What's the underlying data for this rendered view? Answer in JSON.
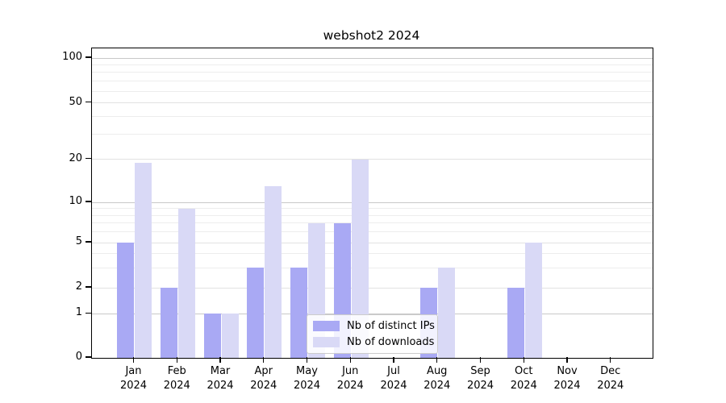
{
  "chart_data": {
    "type": "bar",
    "title": "webshot2 2024",
    "categories": [
      "Jan",
      "Feb",
      "Mar",
      "Apr",
      "May",
      "Jun",
      "Jul",
      "Aug",
      "Sep",
      "Oct",
      "Nov",
      "Dec"
    ],
    "category_year": "2024",
    "series": [
      {
        "name": "Nb of distinct IPs",
        "color": "#a9a9f4",
        "values": [
          5,
          2,
          1,
          3,
          3,
          7,
          0,
          2,
          0,
          2,
          0,
          0
        ]
      },
      {
        "name": "Nb of downloads",
        "color": "#d9d9f6",
        "values": [
          19,
          9,
          1,
          13,
          7,
          20,
          0,
          3,
          0,
          5,
          0,
          0
        ]
      }
    ],
    "xlabel": "",
    "ylabel": "",
    "yscale": "log-like with 0 baseline",
    "yticks": [
      0,
      1,
      2,
      5,
      10,
      20,
      50,
      100
    ],
    "minor_gridlines": [
      3,
      4,
      6,
      7,
      8,
      9,
      30,
      40,
      60,
      70,
      80,
      90
    ],
    "ylim": [
      0,
      115
    ],
    "grid": "on",
    "legend_position": "lower center"
  },
  "colors": {
    "grid_decade": "#c8c8c8",
    "grid_labeled": "#e2e2e2",
    "grid_minor": "#ededed",
    "spine": "#000000",
    "text": "#000000",
    "legend_border": "#cccccc"
  }
}
